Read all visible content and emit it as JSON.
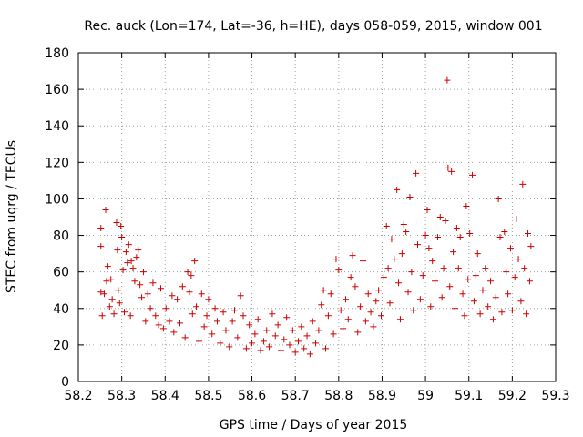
{
  "chart_data": {
    "type": "scatter",
    "title": "Rec. auck (Lon=174, Lat=-36, h=HE), days 058-059, 2015, window 001",
    "xlabel": "GPS time / Days of year 2015",
    "ylabel": "STEC from uqrg / TECUs",
    "xlim": [
      58.2,
      59.3
    ],
    "ylim": [
      0,
      180
    ],
    "xticks": [
      "58.2",
      "58.3",
      "58.4",
      "58.5",
      "58.6",
      "58.7",
      "58.8",
      "58.9",
      "59",
      "59.1",
      "59.2",
      "59.3"
    ],
    "yticks": [
      "0",
      "20",
      "40",
      "60",
      "80",
      "100",
      "120",
      "140",
      "160",
      "180"
    ],
    "grid": true,
    "marker": "plus",
    "color": "#cc0000",
    "series": [
      {
        "points": [
          [
            58.252,
            84
          ],
          [
            58.252,
            74
          ],
          [
            58.252,
            49
          ],
          [
            58.255,
            36
          ],
          [
            58.26,
            48
          ],
          [
            58.263,
            94
          ],
          [
            58.265,
            55
          ],
          [
            58.268,
            63
          ],
          [
            58.272,
            41
          ],
          [
            58.275,
            56
          ],
          [
            58.278,
            45
          ],
          [
            58.282,
            37
          ],
          [
            58.288,
            87
          ],
          [
            58.29,
            72
          ],
          [
            58.292,
            50
          ],
          [
            58.295,
            43
          ],
          [
            58.298,
            85
          ],
          [
            58.3,
            79
          ],
          [
            58.303,
            61
          ],
          [
            58.306,
            38
          ],
          [
            58.31,
            71
          ],
          [
            58.313,
            65
          ],
          [
            58.316,
            75
          ],
          [
            58.32,
            36
          ],
          [
            58.322,
            66
          ],
          [
            58.326,
            62
          ],
          [
            58.33,
            55
          ],
          [
            58.334,
            68
          ],
          [
            58.338,
            72
          ],
          [
            58.342,
            53
          ],
          [
            58.346,
            46
          ],
          [
            58.35,
            60
          ],
          [
            58.355,
            33
          ],
          [
            58.36,
            48
          ],
          [
            58.366,
            40
          ],
          [
            58.372,
            54
          ],
          [
            58.378,
            36
          ],
          [
            58.385,
            31
          ],
          [
            58.39,
            51
          ],
          [
            58.396,
            29
          ],
          [
            58.402,
            40
          ],
          [
            58.41,
            33
          ],
          [
            58.416,
            47
          ],
          [
            58.42,
            27
          ],
          [
            58.428,
            45
          ],
          [
            58.434,
            32
          ],
          [
            58.44,
            52
          ],
          [
            58.446,
            24
          ],
          [
            58.452,
            60
          ],
          [
            58.456,
            49
          ],
          [
            58.46,
            58
          ],
          [
            58.463,
            37
          ],
          [
            58.468,
            66
          ],
          [
            58.472,
            41
          ],
          [
            58.478,
            22
          ],
          [
            58.484,
            48
          ],
          [
            58.49,
            30
          ],
          [
            58.496,
            36
          ],
          [
            58.5,
            45
          ],
          [
            58.508,
            26
          ],
          [
            58.515,
            40
          ],
          [
            58.52,
            33
          ],
          [
            58.527,
            21
          ],
          [
            58.534,
            38
          ],
          [
            58.54,
            28
          ],
          [
            58.548,
            19
          ],
          [
            58.555,
            33
          ],
          [
            58.56,
            39
          ],
          [
            58.567,
            24
          ],
          [
            58.574,
            47
          ],
          [
            58.58,
            36
          ],
          [
            58.587,
            18
          ],
          [
            58.594,
            31
          ],
          [
            58.6,
            21
          ],
          [
            58.607,
            26
          ],
          [
            58.614,
            34
          ],
          [
            58.62,
            17
          ],
          [
            58.627,
            22
          ],
          [
            58.634,
            28
          ],
          [
            58.64,
            19
          ],
          [
            58.647,
            37
          ],
          [
            58.654,
            25
          ],
          [
            58.66,
            31
          ],
          [
            58.667,
            17
          ],
          [
            58.674,
            23
          ],
          [
            58.68,
            35
          ],
          [
            58.687,
            20
          ],
          [
            58.694,
            28
          ],
          [
            58.7,
            16
          ],
          [
            58.707,
            22
          ],
          [
            58.714,
            30
          ],
          [
            58.72,
            18
          ],
          [
            58.727,
            25
          ],
          [
            58.734,
            15
          ],
          [
            58.74,
            33
          ],
          [
            58.747,
            21
          ],
          [
            58.754,
            28
          ],
          [
            58.76,
            42
          ],
          [
            58.765,
            50
          ],
          [
            58.77,
            18
          ],
          [
            58.776,
            36
          ],
          [
            58.782,
            48
          ],
          [
            58.788,
            26
          ],
          [
            58.794,
            67
          ],
          [
            58.8,
            61
          ],
          [
            58.805,
            39
          ],
          [
            58.81,
            29
          ],
          [
            58.816,
            45
          ],
          [
            58.822,
            34
          ],
          [
            58.828,
            57
          ],
          [
            58.832,
            69
          ],
          [
            58.838,
            52
          ],
          [
            58.844,
            27
          ],
          [
            58.85,
            41
          ],
          [
            58.856,
            66
          ],
          [
            58.862,
            33
          ],
          [
            58.868,
            48
          ],
          [
            58.874,
            38
          ],
          [
            58.88,
            30
          ],
          [
            58.886,
            44
          ],
          [
            58.892,
            50
          ],
          [
            58.898,
            36
          ],
          [
            58.904,
            57
          ],
          [
            58.91,
            85
          ],
          [
            58.914,
            62
          ],
          [
            58.918,
            43
          ],
          [
            58.922,
            78
          ],
          [
            58.928,
            67
          ],
          [
            58.934,
            105
          ],
          [
            58.938,
            54
          ],
          [
            58.942,
            34
          ],
          [
            58.946,
            70
          ],
          [
            58.95,
            86
          ],
          [
            58.955,
            82
          ],
          [
            58.96,
            49
          ],
          [
            58.964,
            101
          ],
          [
            58.968,
            60
          ],
          [
            58.972,
            39
          ],
          [
            58.978,
            114
          ],
          [
            58.982,
            75
          ],
          [
            58.988,
            45
          ],
          [
            58.994,
            58
          ],
          [
            59.0,
            80
          ],
          [
            59.004,
            94
          ],
          [
            59.008,
            73
          ],
          [
            59.012,
            41
          ],
          [
            59.016,
            66
          ],
          [
            59.022,
            55
          ],
          [
            59.028,
            79
          ],
          [
            59.034,
            90
          ],
          [
            59.038,
            46
          ],
          [
            59.042,
            62
          ],
          [
            59.046,
            88
          ],
          [
            59.05,
            165
          ],
          [
            59.052,
            117
          ],
          [
            59.056,
            52
          ],
          [
            59.06,
            115
          ],
          [
            59.064,
            71
          ],
          [
            59.068,
            40
          ],
          [
            59.072,
            84
          ],
          [
            59.076,
            62
          ],
          [
            59.08,
            79
          ],
          [
            59.086,
            48
          ],
          [
            59.09,
            36
          ],
          [
            59.094,
            96
          ],
          [
            59.098,
            56
          ],
          [
            59.102,
            81
          ],
          [
            59.108,
            113
          ],
          [
            59.112,
            44
          ],
          [
            59.116,
            58
          ],
          [
            59.12,
            70
          ],
          [
            59.126,
            37
          ],
          [
            59.132,
            50
          ],
          [
            59.138,
            62
          ],
          [
            59.144,
            41
          ],
          [
            59.15,
            55
          ],
          [
            59.156,
            34
          ],
          [
            59.162,
            46
          ],
          [
            59.168,
            100
          ],
          [
            59.172,
            79
          ],
          [
            59.176,
            38
          ],
          [
            59.182,
            82
          ],
          [
            59.186,
            60
          ],
          [
            59.19,
            48
          ],
          [
            59.196,
            73
          ],
          [
            59.2,
            39
          ],
          [
            59.206,
            57
          ],
          [
            59.21,
            89
          ],
          [
            59.214,
            67
          ],
          [
            59.22,
            44
          ],
          [
            59.224,
            108
          ],
          [
            59.228,
            62
          ],
          [
            59.232,
            37
          ],
          [
            59.236,
            81
          ],
          [
            59.24,
            55
          ],
          [
            59.243,
            74
          ]
        ]
      }
    ]
  }
}
